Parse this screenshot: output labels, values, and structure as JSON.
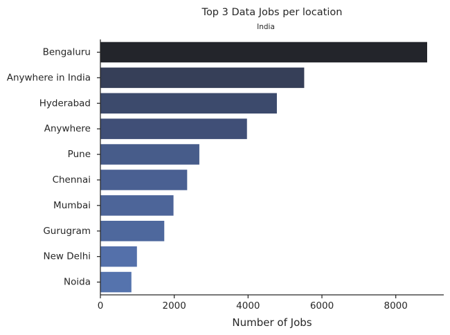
{
  "chart_data": {
    "type": "bar",
    "orientation": "horizontal",
    "title": "Top 3 Data Jobs per location",
    "subtitle": "India",
    "xlabel": "Number of Jobs",
    "ylabel": "",
    "categories": [
      "Bengaluru",
      "Anywhere in India",
      "Hyderabad",
      "Anywhere",
      "Pune",
      "Chennai",
      "Mumbai",
      "Gurugram",
      "New Delhi",
      "Noida"
    ],
    "values": [
      8850,
      5520,
      4780,
      3970,
      2680,
      2350,
      1980,
      1730,
      990,
      840
    ],
    "xlim": [
      0,
      9300
    ],
    "xticks": [
      0,
      2000,
      4000,
      6000,
      8000
    ],
    "xtick_labels": [
      "0",
      "2000",
      "4000",
      "6000",
      "8000"
    ],
    "colors": [
      "#23252b",
      "#363f58",
      "#3c4a6c",
      "#404f77",
      "#475c8a",
      "#4a6092",
      "#4d6599",
      "#4e689d",
      "#5470aa",
      "#5573ad"
    ],
    "grid": false,
    "legend": "none"
  }
}
